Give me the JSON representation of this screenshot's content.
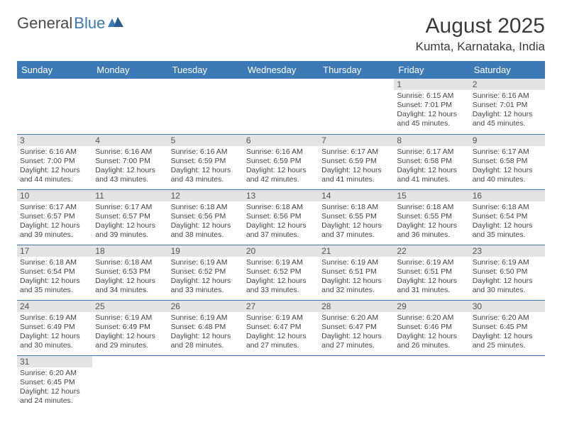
{
  "logo": {
    "text1": "General",
    "text2": "Blue"
  },
  "title": "August 2025",
  "location": "Kumta, Karnataka, India",
  "colors": {
    "header_bg": "#3b7ab5",
    "header_text": "#ffffff",
    "daynum_bg": "#e4e4e4",
    "border": "#3b7ab5",
    "body_text": "#444444"
  },
  "weekdays": [
    "Sunday",
    "Monday",
    "Tuesday",
    "Wednesday",
    "Thursday",
    "Friday",
    "Saturday"
  ],
  "weeks": [
    [
      {
        "blank": true
      },
      {
        "blank": true
      },
      {
        "blank": true
      },
      {
        "blank": true
      },
      {
        "blank": true
      },
      {
        "day": "1",
        "sunrise": "6:15 AM",
        "sunset": "7:01 PM",
        "daylight": "12 hours and 45 minutes."
      },
      {
        "day": "2",
        "sunrise": "6:16 AM",
        "sunset": "7:01 PM",
        "daylight": "12 hours and 45 minutes."
      }
    ],
    [
      {
        "day": "3",
        "sunrise": "6:16 AM",
        "sunset": "7:00 PM",
        "daylight": "12 hours and 44 minutes."
      },
      {
        "day": "4",
        "sunrise": "6:16 AM",
        "sunset": "7:00 PM",
        "daylight": "12 hours and 43 minutes."
      },
      {
        "day": "5",
        "sunrise": "6:16 AM",
        "sunset": "6:59 PM",
        "daylight": "12 hours and 43 minutes."
      },
      {
        "day": "6",
        "sunrise": "6:16 AM",
        "sunset": "6:59 PM",
        "daylight": "12 hours and 42 minutes."
      },
      {
        "day": "7",
        "sunrise": "6:17 AM",
        "sunset": "6:59 PM",
        "daylight": "12 hours and 41 minutes."
      },
      {
        "day": "8",
        "sunrise": "6:17 AM",
        "sunset": "6:58 PM",
        "daylight": "12 hours and 41 minutes."
      },
      {
        "day": "9",
        "sunrise": "6:17 AM",
        "sunset": "6:58 PM",
        "daylight": "12 hours and 40 minutes."
      }
    ],
    [
      {
        "day": "10",
        "sunrise": "6:17 AM",
        "sunset": "6:57 PM",
        "daylight": "12 hours and 39 minutes."
      },
      {
        "day": "11",
        "sunrise": "6:17 AM",
        "sunset": "6:57 PM",
        "daylight": "12 hours and 39 minutes."
      },
      {
        "day": "12",
        "sunrise": "6:18 AM",
        "sunset": "6:56 PM",
        "daylight": "12 hours and 38 minutes."
      },
      {
        "day": "13",
        "sunrise": "6:18 AM",
        "sunset": "6:56 PM",
        "daylight": "12 hours and 37 minutes."
      },
      {
        "day": "14",
        "sunrise": "6:18 AM",
        "sunset": "6:55 PM",
        "daylight": "12 hours and 37 minutes."
      },
      {
        "day": "15",
        "sunrise": "6:18 AM",
        "sunset": "6:55 PM",
        "daylight": "12 hours and 36 minutes."
      },
      {
        "day": "16",
        "sunrise": "6:18 AM",
        "sunset": "6:54 PM",
        "daylight": "12 hours and 35 minutes."
      }
    ],
    [
      {
        "day": "17",
        "sunrise": "6:18 AM",
        "sunset": "6:54 PM",
        "daylight": "12 hours and 35 minutes."
      },
      {
        "day": "18",
        "sunrise": "6:18 AM",
        "sunset": "6:53 PM",
        "daylight": "12 hours and 34 minutes."
      },
      {
        "day": "19",
        "sunrise": "6:19 AM",
        "sunset": "6:52 PM",
        "daylight": "12 hours and 33 minutes."
      },
      {
        "day": "20",
        "sunrise": "6:19 AM",
        "sunset": "6:52 PM",
        "daylight": "12 hours and 33 minutes."
      },
      {
        "day": "21",
        "sunrise": "6:19 AM",
        "sunset": "6:51 PM",
        "daylight": "12 hours and 32 minutes."
      },
      {
        "day": "22",
        "sunrise": "6:19 AM",
        "sunset": "6:51 PM",
        "daylight": "12 hours and 31 minutes."
      },
      {
        "day": "23",
        "sunrise": "6:19 AM",
        "sunset": "6:50 PM",
        "daylight": "12 hours and 30 minutes."
      }
    ],
    [
      {
        "day": "24",
        "sunrise": "6:19 AM",
        "sunset": "6:49 PM",
        "daylight": "12 hours and 30 minutes."
      },
      {
        "day": "25",
        "sunrise": "6:19 AM",
        "sunset": "6:49 PM",
        "daylight": "12 hours and 29 minutes."
      },
      {
        "day": "26",
        "sunrise": "6:19 AM",
        "sunset": "6:48 PM",
        "daylight": "12 hours and 28 minutes."
      },
      {
        "day": "27",
        "sunrise": "6:19 AM",
        "sunset": "6:47 PM",
        "daylight": "12 hours and 27 minutes."
      },
      {
        "day": "28",
        "sunrise": "6:20 AM",
        "sunset": "6:47 PM",
        "daylight": "12 hours and 27 minutes."
      },
      {
        "day": "29",
        "sunrise": "6:20 AM",
        "sunset": "6:46 PM",
        "daylight": "12 hours and 26 minutes."
      },
      {
        "day": "30",
        "sunrise": "6:20 AM",
        "sunset": "6:45 PM",
        "daylight": "12 hours and 25 minutes."
      }
    ],
    [
      {
        "day": "31",
        "sunrise": "6:20 AM",
        "sunset": "6:45 PM",
        "daylight": "12 hours and 24 minutes."
      },
      {
        "blank": true
      },
      {
        "blank": true
      },
      {
        "blank": true
      },
      {
        "blank": true
      },
      {
        "blank": true
      },
      {
        "blank": true
      }
    ]
  ],
  "labels": {
    "sunrise": "Sunrise:",
    "sunset": "Sunset:",
    "daylight": "Daylight:"
  }
}
